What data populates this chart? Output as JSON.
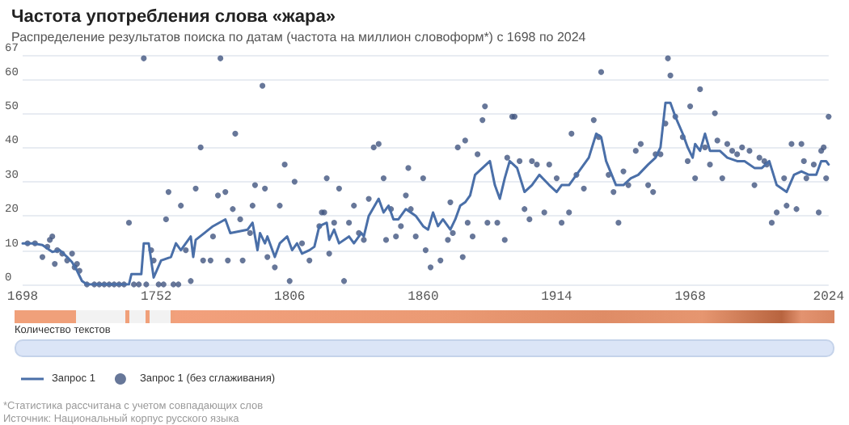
{
  "chart_data": {
    "type": "line",
    "title": "Частота употребления слова «жара»",
    "subtitle": "Распределение результатов поиска по датам (частота на миллион словоформ*) с 1698 по 2024",
    "xlim": [
      1698,
      2024
    ],
    "xticks": [
      1698,
      1752,
      1806,
      1860,
      1914,
      1968,
      2024
    ],
    "ylim": [
      0,
      67
    ],
    "yticks": [
      0,
      10,
      20,
      30,
      40,
      50,
      60,
      67
    ],
    "grid": "y",
    "legend": "bottom left",
    "annotations": [
      "Количество текстов",
      "*Статистика рассчитана с учетом совпадающих слов",
      "Источник: Национальный корпус русского языка"
    ],
    "series": [
      {
        "name": "Запрос 1",
        "color": "#4a6fa8",
        "marker": "none",
        "x": [
          1698,
          1702,
          1706,
          1710,
          1713,
          1716,
          1718,
          1720,
          1722,
          1724,
          1741,
          1742,
          1746,
          1747,
          1749,
          1751,
          1754,
          1758,
          1760,
          1762,
          1766,
          1767,
          1768,
          1775,
          1780,
          1782,
          1789,
          1791,
          1793,
          1794,
          1796,
          1797,
          1800,
          1802,
          1805,
          1807,
          1809,
          1811,
          1814,
          1816,
          1818,
          1821,
          1822,
          1824,
          1826,
          1830,
          1832,
          1835,
          1836,
          1838,
          1842,
          1844,
          1846,
          1848,
          1850,
          1853,
          1857,
          1860,
          1862,
          1864,
          1866,
          1868,
          1871,
          1873,
          1875,
          1877,
          1879,
          1881,
          1884,
          1887,
          1889,
          1891,
          1893,
          1895,
          1898,
          1901,
          1904,
          1907,
          1911,
          1914,
          1916,
          1919,
          1922,
          1927,
          1930,
          1932,
          1934,
          1938,
          1941,
          1944,
          1947,
          1951,
          1954,
          1956,
          1958,
          1960,
          1962,
          1965,
          1967,
          1969,
          1970,
          1972,
          1974,
          1976,
          1980,
          1983,
          1987,
          1990,
          1994,
          1997,
          2000,
          2003,
          2007,
          2010,
          2013,
          2016,
          2019,
          2021,
          2023,
          2024
        ],
        "values": [
          12,
          12,
          11.5,
          9.5,
          10,
          8,
          6.5,
          4,
          1,
          0,
          0,
          3,
          3,
          12,
          12,
          2,
          7,
          8,
          12,
          10,
          14,
          8,
          13,
          17,
          19,
          15,
          16,
          18,
          10,
          15,
          12,
          14,
          8,
          12,
          14,
          10,
          12,
          9,
          10,
          11,
          17,
          18,
          13,
          16,
          12,
          14,
          12,
          15,
          14,
          20,
          25,
          21,
          23,
          19,
          19,
          22,
          20,
          17,
          16,
          21,
          17,
          19,
          16,
          19,
          23,
          24,
          26,
          32,
          34,
          36,
          29,
          25,
          31,
          36,
          34,
          27,
          29,
          32,
          29,
          27,
          29,
          29,
          32,
          37,
          44,
          43,
          36,
          29,
          29,
          31,
          32,
          35,
          37,
          40,
          53,
          53,
          49,
          44,
          40,
          37,
          41,
          39,
          44,
          39,
          39,
          37,
          36,
          36,
          34,
          34,
          36,
          29,
          27,
          32,
          33,
          32,
          32,
          36,
          36,
          35
        ]
      },
      {
        "name": "Запрос 1 (без сглаживания)",
        "type": "scatter",
        "color": "#41557f",
        "marker": "circle",
        "x": [
          1700,
          1703,
          1706,
          1708,
          1709,
          1710,
          1711,
          1712,
          1714,
          1716,
          1718,
          1719,
          1720,
          1721,
          1724,
          1727,
          1729,
          1731,
          1733,
          1735,
          1737,
          1739,
          1741,
          1743,
          1745,
          1747,
          1748,
          1750,
          1751,
          1753,
          1755,
          1756,
          1757,
          1759,
          1761,
          1762,
          1764,
          1766,
          1768,
          1770,
          1771,
          1774,
          1775,
          1777,
          1778,
          1780,
          1781,
          1783,
          1784,
          1786,
          1787,
          1790,
          1791,
          1792,
          1795,
          1796,
          1797,
          1800,
          1802,
          1804,
          1806,
          1808,
          1811,
          1814,
          1818,
          1819,
          1820,
          1821,
          1822,
          1824,
          1826,
          1828,
          1830,
          1832,
          1834,
          1836,
          1838,
          1840,
          1842,
          1844,
          1845,
          1847,
          1849,
          1851,
          1853,
          1854,
          1855,
          1857,
          1860,
          1861,
          1863,
          1867,
          1870,
          1871,
          1872,
          1874,
          1876,
          1877,
          1878,
          1880,
          1882,
          1884,
          1885,
          1886,
          1890,
          1893,
          1894,
          1896,
          1897,
          1899,
          1901,
          1903,
          1904,
          1906,
          1909,
          1911,
          1914,
          1916,
          1919,
          1920,
          1922,
          1925,
          1929,
          1931,
          1932,
          1935,
          1937,
          1939,
          1941,
          1943,
          1946,
          1948,
          1951,
          1953,
          1954,
          1956,
          1958,
          1959,
          1960,
          1962,
          1965,
          1967,
          1968,
          1970,
          1972,
          1974,
          1976,
          1978,
          1979,
          1981,
          1983,
          1985,
          1987,
          1989,
          1992,
          1994,
          1996,
          1998,
          1999,
          2001,
          2003,
          2006,
          2007,
          2009,
          2011,
          2013,
          2014,
          2015,
          2018,
          2020,
          2021,
          2022,
          2023,
          2024
        ],
        "values": [
          12,
          12,
          8,
          11,
          13,
          14,
          6,
          10,
          9,
          7,
          9,
          5,
          6,
          4,
          0,
          0,
          0,
          0,
          0,
          0,
          0,
          0,
          18,
          0,
          0,
          66,
          0,
          10,
          7,
          0,
          0,
          19,
          27,
          0,
          0,
          23,
          10,
          1,
          28,
          40,
          7,
          7,
          14,
          26,
          66,
          27,
          7,
          22,
          44,
          19,
          7,
          15,
          23,
          29,
          58,
          28,
          8,
          5,
          23,
          35,
          1,
          30,
          12,
          7,
          17,
          21,
          21,
          31,
          9,
          18,
          28,
          1,
          18,
          23,
          15,
          13,
          25,
          40,
          41,
          31,
          13,
          22,
          14,
          17,
          26,
          34,
          22,
          14,
          31,
          10,
          5,
          7,
          13,
          24,
          15,
          40,
          8,
          42,
          18,
          14,
          38,
          48,
          52,
          18,
          18,
          13,
          37,
          49,
          49,
          36,
          22,
          19,
          36,
          35,
          21,
          35,
          31,
          18,
          21,
          44,
          32,
          28,
          48,
          43,
          62,
          32,
          27,
          18,
          33,
          29,
          39,
          41,
          29,
          27,
          38,
          38,
          47,
          66,
          61,
          49,
          43,
          36,
          52,
          31,
          57,
          40,
          35,
          50,
          42,
          31,
          41,
          39,
          38,
          40,
          39,
          29,
          37,
          36,
          35,
          18,
          21,
          31,
          23,
          41,
          22,
          41,
          36,
          31,
          35,
          21,
          39,
          40,
          31,
          49
        ]
      }
    ]
  }
}
